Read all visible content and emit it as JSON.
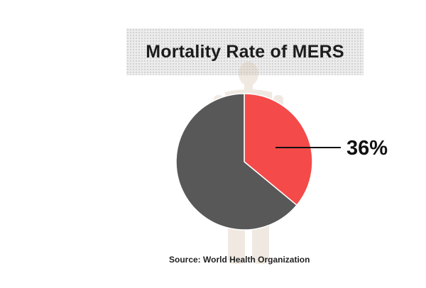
{
  "title": "Mortality Rate of MERS",
  "source": "Source: World Health Organization",
  "chart_data": {
    "type": "pie",
    "title": "Mortality Rate of MERS",
    "slices": [
      {
        "value": 36,
        "color": "#f44a4a",
        "data_label": "36%"
      },
      {
        "value": 64,
        "color": "#585858",
        "data_label": ""
      }
    ],
    "start": "12 o'clock",
    "direction": "clockwise"
  }
}
